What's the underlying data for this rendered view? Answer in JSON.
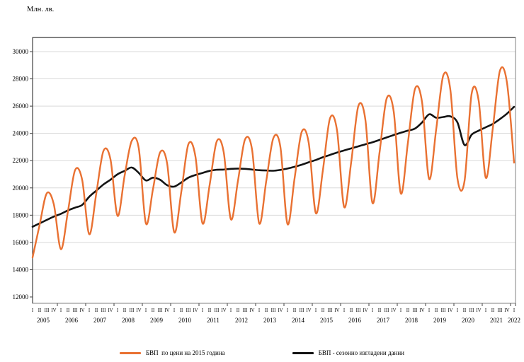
{
  "colors": {
    "gdp": "#E97132",
    "gdp_sa": "#141414",
    "grid": "#D9D9D9",
    "axis": "#404040",
    "border": "#808080",
    "text": "#000000"
  },
  "chart_data": {
    "type": "line",
    "title": "Млн. лв.",
    "ylabel": "Млн. лв.",
    "xlabel": "",
    "ylim": [
      12000,
      30000
    ],
    "ytick_step": 2000,
    "grid": "horizontal",
    "legend_position": "bottom-center",
    "x_axis": {
      "years": [
        2005,
        2006,
        2007,
        2008,
        2009,
        2010,
        2011,
        2012,
        2013,
        2014,
        2015,
        2016,
        2017,
        2018,
        2019,
        2020,
        2021,
        2022
      ],
      "quarter_labels": [
        "I",
        "II",
        "III",
        "IV"
      ],
      "last_year_quarter_count": 1
    },
    "series": [
      {
        "name": "БВП  по цени на 2015 година",
        "color_key": "gdp",
        "smooth": true,
        "values": [
          14900,
          17300,
          19600,
          18800,
          15500,
          18300,
          21300,
          20600,
          16600,
          19600,
          22700,
          22100,
          17950,
          20900,
          23450,
          22900,
          17400,
          19900,
          22600,
          21800,
          16750,
          19700,
          23200,
          22300,
          17400,
          20200,
          23400,
          22600,
          17700,
          20500,
          23550,
          22800,
          17400,
          20500,
          23650,
          23000,
          17350,
          20700,
          24100,
          23300,
          18150,
          21300,
          25100,
          24200,
          18600,
          21900,
          26000,
          25000,
          18900,
          22600,
          26550,
          25600,
          19600,
          23300,
          27250,
          26300,
          20650,
          24300,
          28250,
          27200,
          20700,
          20500,
          26900,
          26400,
          20750,
          24400,
          28600,
          27700,
          21850
        ]
      },
      {
        "name": "БВП - сезонно изгладени данни",
        "color_key": "gdp_sa",
        "smooth": true,
        "values": [
          17150,
          17400,
          17650,
          17900,
          18100,
          18350,
          18550,
          18750,
          19350,
          19800,
          20250,
          20600,
          21000,
          21250,
          21500,
          21100,
          20550,
          20750,
          20600,
          20200,
          20100,
          20400,
          20750,
          20950,
          21100,
          21250,
          21330,
          21350,
          21400,
          21420,
          21400,
          21350,
          21300,
          21280,
          21260,
          21320,
          21420,
          21550,
          21700,
          21880,
          22050,
          22250,
          22420,
          22600,
          22750,
          22900,
          23050,
          23200,
          23350,
          23520,
          23700,
          23880,
          24050,
          24200,
          24350,
          24800,
          25400,
          25150,
          25200,
          25250,
          24800,
          23150,
          23900,
          24200,
          24450,
          24700,
          25050,
          25450,
          25950
        ]
      }
    ]
  }
}
